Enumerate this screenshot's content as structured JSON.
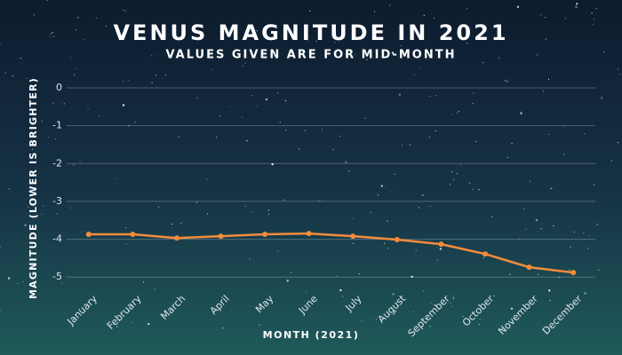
{
  "chart_data": {
    "type": "line",
    "title": "VENUS MAGNITUDE IN 2021",
    "subtitle": "VALUES GIVEN ARE FOR MID-MONTH",
    "x_label": "MONTH (2021)",
    "y_label": "MAGNITUDE (LOWER IS BRIGHTER)",
    "categories": [
      "January",
      "February",
      "March",
      "April",
      "May",
      "June",
      "July",
      "August",
      "September",
      "October",
      "November",
      "December"
    ],
    "values": [
      -3.87,
      -3.87,
      -3.97,
      -3.92,
      -3.87,
      -3.85,
      -3.92,
      -4.01,
      -4.13,
      -4.39,
      -4.74,
      -4.88
    ],
    "color": "#f58b3c",
    "ylim": [
      0,
      -5.3
    ],
    "yticks": [
      0,
      -1,
      -2,
      -3,
      -4,
      -5
    ],
    "grid": true
  }
}
